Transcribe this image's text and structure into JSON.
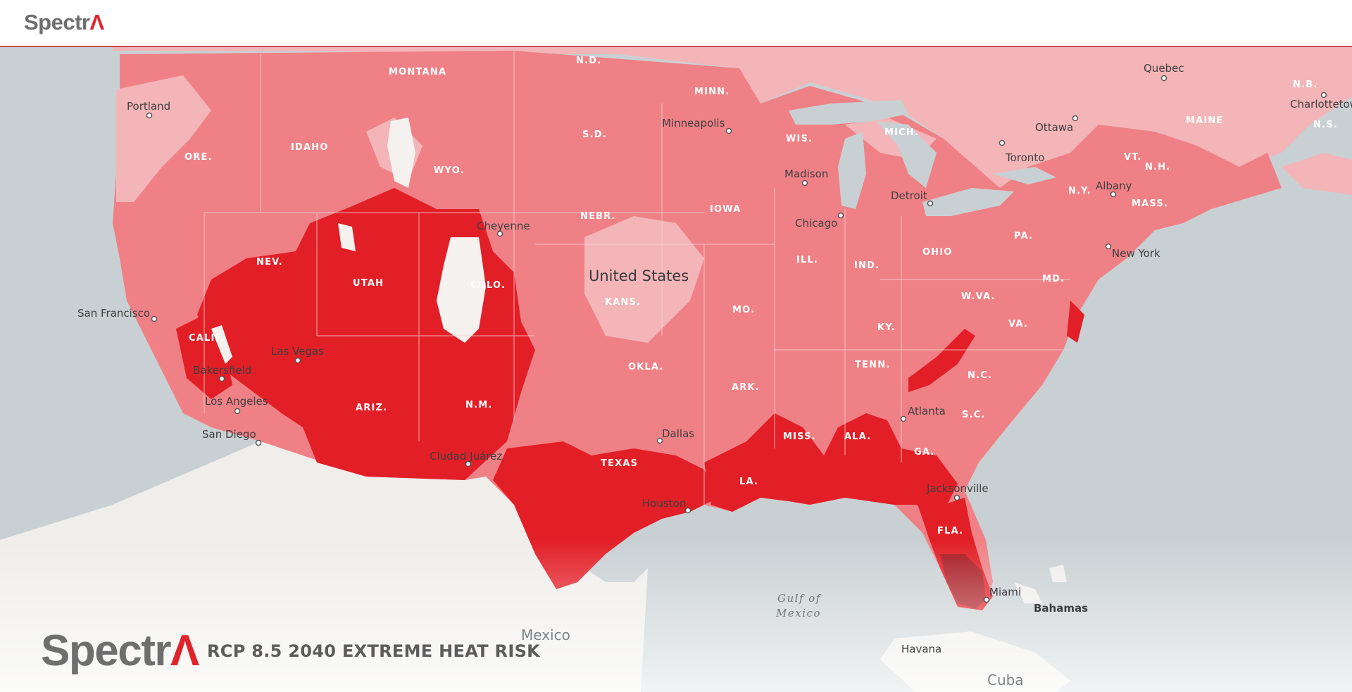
{
  "header": {
    "logo_main": "Spectr",
    "logo_accent": "Λ"
  },
  "footer": {
    "logo_main": "Spectr",
    "logo_accent": "Λ",
    "map_title": "RCP 8.5 2040 EXTREME HEAT RISK"
  },
  "map": {
    "country_label": "United States",
    "risk_colors": {
      "very_low": "#f4f1ee",
      "low": "#f3b5b8",
      "moderate": "#ef8186",
      "high": "#e21f27",
      "very_high": "#a91c23"
    },
    "water_color": "#c9d0d3",
    "land_outside_color": "#efeeeb",
    "state_labels": [
      {
        "name": "MONTANA"
      },
      {
        "name": "N.D."
      },
      {
        "name": "MINN."
      },
      {
        "name": "IDAHO"
      },
      {
        "name": "ORE."
      },
      {
        "name": "WYO."
      },
      {
        "name": "S.D."
      },
      {
        "name": "WIS."
      },
      {
        "name": "MICH."
      },
      {
        "name": "NEBR."
      },
      {
        "name": "IOWA"
      },
      {
        "name": "NEV."
      },
      {
        "name": "UTAH"
      },
      {
        "name": "COLO."
      },
      {
        "name": "KANS."
      },
      {
        "name": "ILL."
      },
      {
        "name": "IND."
      },
      {
        "name": "OHIO"
      },
      {
        "name": "PA."
      },
      {
        "name": "N.Y."
      },
      {
        "name": "VT."
      },
      {
        "name": "N.H."
      },
      {
        "name": "MAINE"
      },
      {
        "name": "MASS."
      },
      {
        "name": "MD."
      },
      {
        "name": "W.VA."
      },
      {
        "name": "VA."
      },
      {
        "name": "KY."
      },
      {
        "name": "MO."
      },
      {
        "name": "CALIF."
      },
      {
        "name": "ARIZ."
      },
      {
        "name": "N.M."
      },
      {
        "name": "OKLA."
      },
      {
        "name": "ARK."
      },
      {
        "name": "TENN."
      },
      {
        "name": "N.C."
      },
      {
        "name": "S.C."
      },
      {
        "name": "GA."
      },
      {
        "name": "ALA."
      },
      {
        "name": "MISS."
      },
      {
        "name": "LA."
      },
      {
        "name": "TEXAS"
      },
      {
        "name": "FLA."
      },
      {
        "name": "N.B."
      },
      {
        "name": "N.S."
      }
    ],
    "city_labels": [
      {
        "name": "Portland"
      },
      {
        "name": "San Francisco"
      },
      {
        "name": "Las Vegas"
      },
      {
        "name": "Bakersfield"
      },
      {
        "name": "Los Angeles"
      },
      {
        "name": "San Diego"
      },
      {
        "name": "Cheyenne"
      },
      {
        "name": "Minneapolis"
      },
      {
        "name": "Madison"
      },
      {
        "name": "Chicago"
      },
      {
        "name": "Detroit"
      },
      {
        "name": "Toronto"
      },
      {
        "name": "Ottawa"
      },
      {
        "name": "Quebec"
      },
      {
        "name": "Albany"
      },
      {
        "name": "New York"
      },
      {
        "name": "Charlottetown"
      },
      {
        "name": "Ciudad Juárez"
      },
      {
        "name": "Dallas"
      },
      {
        "name": "Houston"
      },
      {
        "name": "Atlanta"
      },
      {
        "name": "Jacksonville"
      },
      {
        "name": "Miami"
      },
      {
        "name": "Bahamas"
      },
      {
        "name": "Havana"
      },
      {
        "name": "Cuba"
      },
      {
        "name": "Mexico"
      }
    ],
    "water_labels": [
      {
        "name": "Gulf of"
      },
      {
        "name": "Mexico"
      }
    ]
  }
}
